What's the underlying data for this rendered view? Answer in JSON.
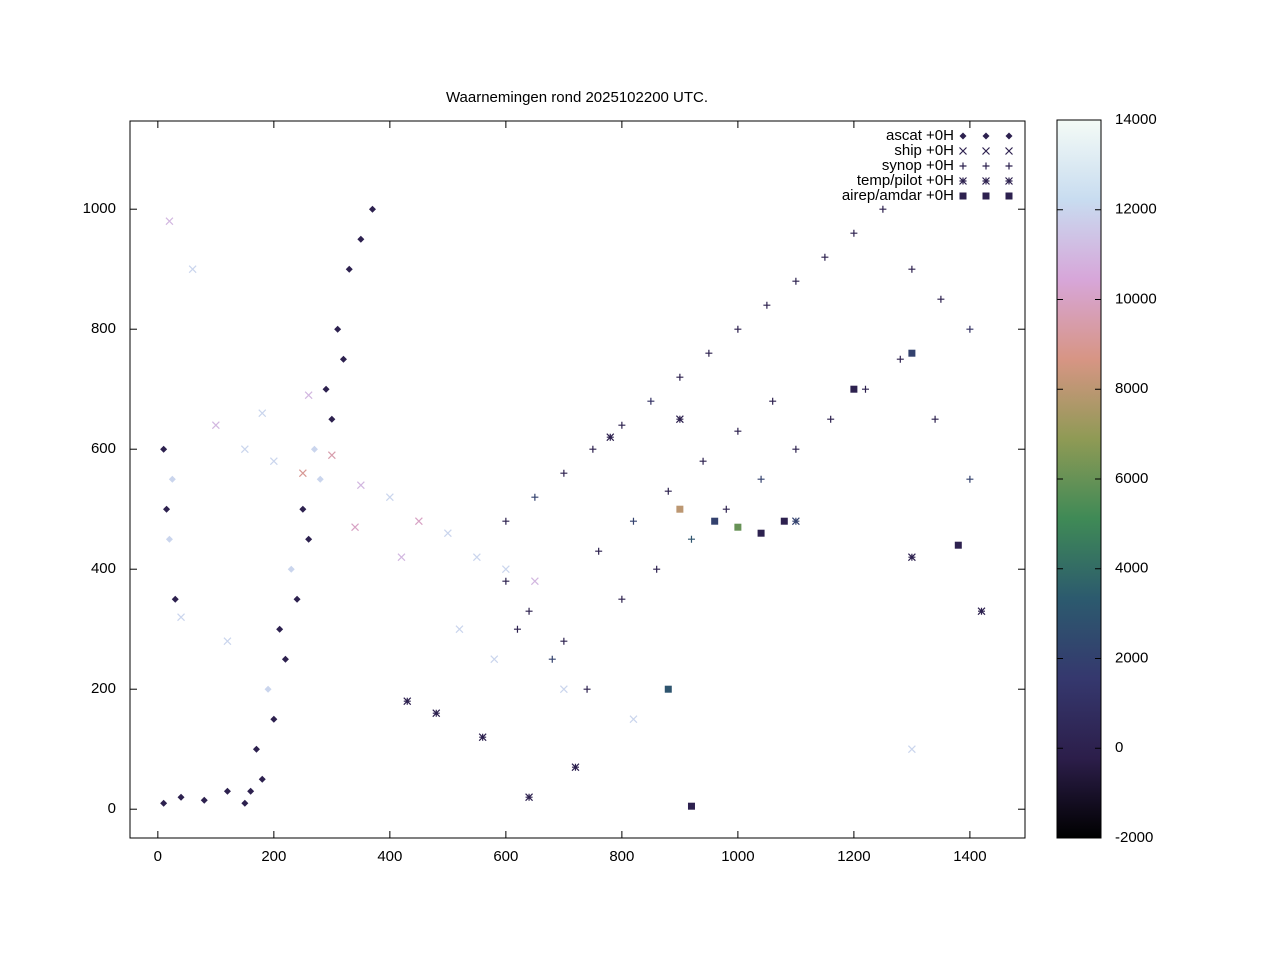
{
  "chart_data": {
    "type": "scatter",
    "title": "Waarnemingen rond 2025102200 UTC.",
    "xlim": [
      -48,
      1495
    ],
    "xticks": [
      0,
      200,
      400,
      600,
      800,
      1000,
      1200,
      1400
    ],
    "ylim": [
      -48,
      1147
    ],
    "yticks": [
      0,
      200,
      400,
      600,
      800,
      1000
    ],
    "cblim": [
      -2000,
      14000
    ],
    "cbticks": [
      -2000,
      0,
      2000,
      4000,
      6000,
      8000,
      10000,
      12000,
      14000
    ],
    "palette": [
      "#000000",
      "#2c1e4a",
      "#35386e",
      "#2c5a6e",
      "#3f8a56",
      "#8f9a55",
      "#d79584",
      "#d7a6d9",
      "#c8dcf0",
      "#f4fbf6"
    ],
    "legend": "top-right",
    "series": [
      {
        "name": "ascat +0H",
        "marker": "dot",
        "x": [
          10,
          40,
          80,
          120,
          150,
          170,
          190,
          210,
          230,
          250,
          270,
          290,
          310,
          330,
          350,
          370,
          200,
          240,
          280,
          320,
          10,
          20,
          30,
          15,
          25,
          180,
          260,
          300,
          220,
          160
        ],
        "y": [
          10,
          20,
          15,
          30,
          10,
          100,
          200,
          300,
          400,
          500,
          600,
          700,
          800,
          900,
          950,
          1000,
          150,
          350,
          550,
          750,
          600,
          450,
          350,
          500,
          550,
          50,
          450,
          650,
          250,
          30
        ],
        "c": [
          0,
          0,
          0,
          0,
          0,
          0,
          12000,
          0,
          12000,
          0,
          12000,
          0,
          0,
          0,
          0,
          0,
          0,
          0,
          12000,
          0,
          0,
          12000,
          0,
          0,
          12000,
          0,
          0,
          0,
          0,
          0
        ]
      },
      {
        "name": "ship +0H",
        "marker": "x",
        "x": [
          20,
          60,
          100,
          150,
          200,
          250,
          300,
          350,
          400,
          450,
          500,
          550,
          600,
          650,
          40,
          120,
          180,
          260,
          340,
          420,
          520,
          580,
          700,
          820,
          1300
        ],
        "y": [
          980,
          900,
          640,
          600,
          580,
          560,
          590,
          540,
          520,
          480,
          460,
          420,
          400,
          380,
          320,
          280,
          660,
          690,
          470,
          420,
          300,
          250,
          200,
          150,
          100
        ],
        "c": [
          11000,
          12000,
          11000,
          12000,
          12000,
          9000,
          9500,
          11000,
          12000,
          10000,
          12000,
          12000,
          12000,
          11000,
          12000,
          12000,
          12000,
          11000,
          10000,
          11000,
          12000,
          12000,
          12000,
          12000,
          12000
        ]
      },
      {
        "name": "synop +0H",
        "marker": "plus",
        "x": [
          600,
          650,
          700,
          750,
          800,
          850,
          900,
          950,
          1000,
          1050,
          1100,
          1150,
          1200,
          1250,
          1300,
          1350,
          1400,
          620,
          680,
          740,
          800,
          860,
          920,
          980,
          1040,
          1100,
          1160,
          1220,
          1280,
          1340,
          1400,
          600,
          640,
          700,
          760,
          820,
          880,
          940,
          1000,
          1060
        ],
        "y": [
          480,
          520,
          560,
          600,
          640,
          680,
          720,
          760,
          800,
          840,
          880,
          920,
          960,
          1000,
          900,
          850,
          800,
          300,
          250,
          200,
          350,
          400,
          450,
          500,
          550,
          600,
          650,
          700,
          750,
          650,
          550,
          380,
          330,
          280,
          430,
          480,
          530,
          580,
          630,
          680
        ],
        "c": [
          0,
          2000,
          0,
          0,
          0,
          1000,
          0,
          0,
          0,
          0,
          0,
          0,
          0,
          0,
          0,
          0,
          1000,
          0,
          2000,
          0,
          0,
          0,
          3000,
          0,
          2000,
          0,
          0,
          0,
          0,
          0,
          2000,
          0,
          0,
          0,
          0,
          2000,
          0,
          0,
          0,
          0
        ]
      },
      {
        "name": "temp/pilot +0H",
        "marker": "star",
        "x": [
          430,
          480,
          560,
          640,
          720,
          780,
          900,
          1100,
          1300,
          1420
        ],
        "y": [
          180,
          160,
          120,
          20,
          70,
          620,
          650,
          480,
          420,
          330
        ],
        "c": [
          0,
          0,
          0,
          0,
          0,
          0,
          0,
          2000,
          0,
          0
        ]
      },
      {
        "name": "airep/amdar +0H",
        "marker": "square",
        "x": [
          900,
          960,
          1000,
          1040,
          1080,
          1200,
          1300,
          1380,
          880,
          920
        ],
        "y": [
          500,
          480,
          470,
          460,
          480,
          700,
          760,
          440,
          200,
          5
        ],
        "c": [
          8000,
          2000,
          6000,
          0,
          0,
          0,
          2000,
          0,
          3000,
          0
        ]
      }
    ]
  }
}
